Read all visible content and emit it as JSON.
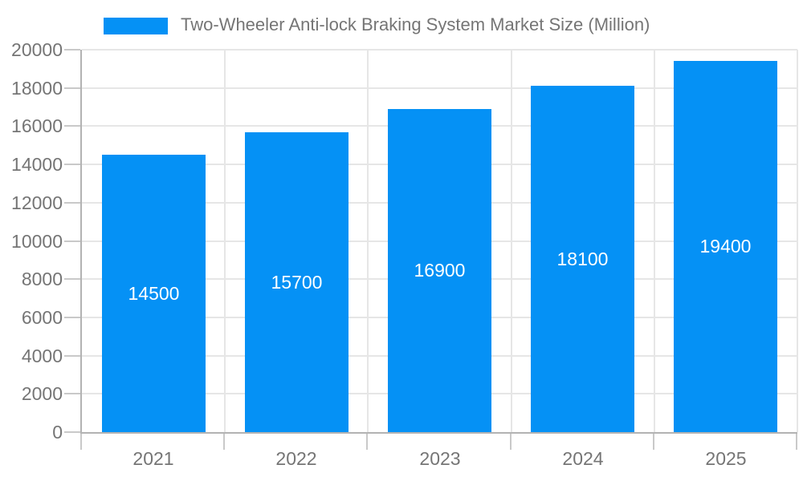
{
  "chart_data": {
    "type": "bar",
    "title": "",
    "legend": {
      "label": "Two-Wheeler Anti-lock Braking System Market Size (Million)",
      "position": "top"
    },
    "categories": [
      "2021",
      "2022",
      "2023",
      "2024",
      "2025"
    ],
    "series": [
      {
        "name": "Two-Wheeler Anti-lock Braking System Market Size (Million)",
        "values": [
          14500,
          15700,
          16900,
          18100,
          19400
        ]
      }
    ],
    "xlabel": "",
    "ylabel": "",
    "ylim": [
      0,
      20000
    ],
    "yticks": [
      0,
      2000,
      4000,
      6000,
      8000,
      10000,
      12000,
      14000,
      16000,
      18000,
      20000
    ],
    "grid": true,
    "value_labels_shown": true
  },
  "colors": {
    "bar": "#0591f5",
    "gridline": "#e6e6e6",
    "axis_line": "#b3b3b3",
    "tick": "#c9c9c9",
    "axis_label": "#757575",
    "legend_text": "#757575",
    "value_label": "#ffffff",
    "background": "#ffffff"
  }
}
